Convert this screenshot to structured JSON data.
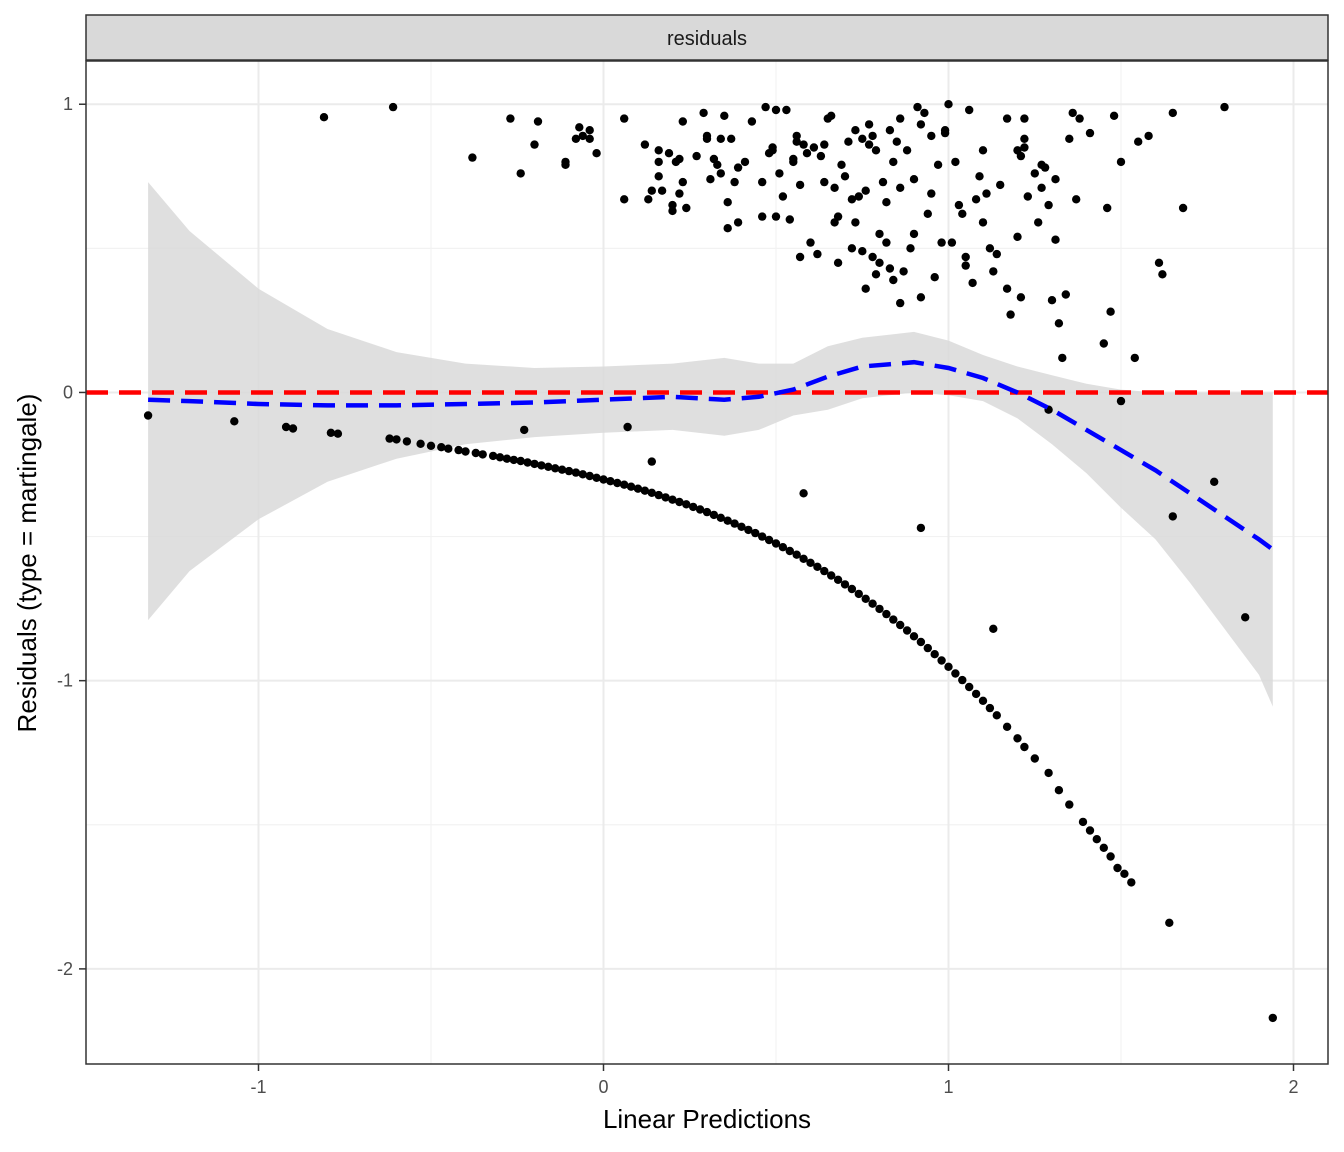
{
  "chart_data": {
    "type": "scatter",
    "facet_strip": "residuals",
    "xlabel": "Linear Predictions",
    "ylabel": "Residuals (type = martingale)",
    "xlim": [
      -1.5,
      2.1
    ],
    "ylim": [
      -2.33,
      1.15
    ],
    "x_ticks": [
      -1,
      0,
      1,
      2
    ],
    "y_ticks": [
      -2,
      -1,
      0,
      1
    ],
    "grid": true,
    "reference_line": {
      "y": 0,
      "color": "#ff0000",
      "style": "dashed"
    },
    "colors": {
      "points": "#000000",
      "smooth": "#0000ff",
      "band": "#d9d9d9",
      "reference": "#ff0000",
      "strip": "#d9d9d9"
    },
    "upper_points": [
      [
        -0.81,
        0.955
      ],
      [
        -0.61,
        0.99
      ],
      [
        -0.38,
        0.815
      ],
      [
        -0.27,
        0.95
      ],
      [
        -0.24,
        0.76
      ],
      [
        -0.2,
        0.86
      ],
      [
        -0.19,
        0.94
      ],
      [
        -0.11,
        0.8
      ],
      [
        -0.11,
        0.79
      ],
      [
        -0.08,
        0.88
      ],
      [
        -0.07,
        0.92
      ],
      [
        -0.06,
        0.89
      ],
      [
        -0.04,
        0.91
      ],
      [
        -0.04,
        0.88
      ],
      [
        -0.02,
        0.83
      ],
      [
        0.06,
        0.95
      ],
      [
        0.06,
        0.67
      ],
      [
        0.12,
        0.86
      ],
      [
        0.13,
        0.67
      ],
      [
        0.14,
        0.7
      ],
      [
        0.16,
        0.8
      ],
      [
        0.16,
        0.75
      ],
      [
        0.16,
        0.84
      ],
      [
        0.17,
        0.7
      ],
      [
        0.19,
        0.83
      ],
      [
        0.2,
        0.65
      ],
      [
        0.2,
        0.63
      ],
      [
        0.21,
        0.8
      ],
      [
        0.22,
        0.69
      ],
      [
        0.22,
        0.81
      ],
      [
        0.23,
        0.94
      ],
      [
        0.23,
        0.73
      ],
      [
        0.24,
        0.64
      ],
      [
        0.29,
        0.97
      ],
      [
        0.3,
        0.88
      ],
      [
        0.3,
        0.89
      ],
      [
        0.31,
        0.74
      ],
      [
        0.32,
        0.81
      ],
      [
        0.33,
        0.79
      ],
      [
        0.34,
        0.76
      ],
      [
        0.34,
        0.88
      ],
      [
        0.35,
        0.96
      ],
      [
        0.36,
        0.57
      ],
      [
        0.36,
        0.66
      ],
      [
        0.37,
        0.88
      ],
      [
        0.38,
        0.73
      ],
      [
        0.39,
        0.59
      ],
      [
        0.39,
        0.78
      ],
      [
        0.41,
        0.8
      ],
      [
        0.43,
        0.94
      ],
      [
        0.46,
        0.61
      ],
      [
        0.47,
        0.99
      ],
      [
        0.48,
        0.83
      ],
      [
        0.49,
        0.85
      ],
      [
        0.49,
        0.84
      ],
      [
        0.5,
        0.98
      ],
      [
        0.5,
        0.61
      ],
      [
        0.51,
        0.76
      ],
      [
        0.52,
        0.68
      ],
      [
        0.53,
        0.98
      ],
      [
        0.54,
        0.6
      ],
      [
        0.55,
        0.81
      ],
      [
        0.56,
        0.89
      ],
      [
        0.56,
        0.87
      ],
      [
        0.57,
        0.47
      ],
      [
        0.58,
        0.86
      ],
      [
        0.59,
        0.83
      ],
      [
        0.6,
        0.52
      ],
      [
        0.61,
        0.85
      ],
      [
        0.62,
        0.48
      ],
      [
        0.63,
        0.82
      ],
      [
        0.64,
        0.73
      ],
      [
        0.64,
        0.86
      ],
      [
        0.65,
        0.95
      ],
      [
        0.66,
        0.96
      ],
      [
        0.67,
        0.59
      ],
      [
        0.67,
        0.71
      ],
      [
        0.68,
        0.45
      ],
      [
        0.68,
        0.61
      ],
      [
        0.69,
        0.79
      ],
      [
        0.71,
        0.87
      ],
      [
        0.72,
        0.67
      ],
      [
        0.72,
        0.5
      ],
      [
        0.73,
        0.91
      ],
      [
        0.73,
        0.59
      ],
      [
        0.74,
        0.68
      ],
      [
        0.75,
        0.88
      ],
      [
        0.75,
        0.49
      ],
      [
        0.76,
        0.36
      ],
      [
        0.76,
        0.7
      ],
      [
        0.77,
        0.93
      ],
      [
        0.77,
        0.86
      ],
      [
        0.78,
        0.47
      ],
      [
        0.78,
        0.89
      ],
      [
        0.79,
        0.41
      ],
      [
        0.8,
        0.55
      ],
      [
        0.8,
        0.45
      ],
      [
        0.81,
        0.73
      ],
      [
        0.82,
        0.52
      ],
      [
        0.82,
        0.66
      ],
      [
        0.83,
        0.43
      ],
      [
        0.83,
        0.91
      ],
      [
        0.84,
        0.39
      ],
      [
        0.84,
        0.8
      ],
      [
        0.85,
        0.87
      ],
      [
        0.86,
        0.31
      ],
      [
        0.86,
        0.71
      ],
      [
        0.87,
        0.42
      ],
      [
        0.88,
        0.84
      ],
      [
        0.89,
        0.5
      ],
      [
        0.9,
        0.55
      ],
      [
        0.9,
        0.74
      ],
      [
        0.91,
        0.99
      ],
      [
        0.92,
        0.93
      ],
      [
        0.92,
        0.33
      ],
      [
        0.93,
        0.97
      ],
      [
        0.94,
        0.62
      ],
      [
        0.95,
        0.69
      ],
      [
        0.96,
        0.4
      ],
      [
        0.97,
        0.79
      ],
      [
        0.98,
        0.52
      ],
      [
        0.99,
        0.9
      ],
      [
        0.99,
        0.91
      ],
      [
        1.0,
        1.0
      ],
      [
        1.01,
        0.52
      ],
      [
        1.02,
        0.8
      ],
      [
        1.03,
        0.65
      ],
      [
        1.04,
        0.62
      ],
      [
        1.05,
        0.47
      ],
      [
        1.05,
        0.44
      ],
      [
        1.06,
        0.98
      ],
      [
        1.07,
        0.38
      ],
      [
        1.08,
        0.67
      ],
      [
        1.1,
        0.84
      ],
      [
        1.1,
        0.59
      ],
      [
        1.11,
        0.69
      ],
      [
        1.12,
        0.5
      ],
      [
        1.13,
        0.42
      ],
      [
        1.14,
        0.48
      ],
      [
        1.17,
        0.95
      ],
      [
        1.17,
        0.36
      ],
      [
        1.18,
        0.27
      ],
      [
        1.2,
        0.54
      ],
      [
        1.2,
        0.84
      ],
      [
        1.21,
        0.33
      ],
      [
        1.21,
        0.82
      ],
      [
        1.22,
        0.85
      ],
      [
        1.22,
        0.88
      ],
      [
        1.22,
        0.95
      ],
      [
        1.23,
        0.68
      ],
      [
        1.25,
        0.76
      ],
      [
        1.26,
        0.59
      ],
      [
        1.27,
        0.79
      ],
      [
        1.27,
        0.71
      ],
      [
        1.28,
        0.78
      ],
      [
        1.29,
        0.65
      ],
      [
        1.3,
        0.32
      ],
      [
        1.31,
        0.74
      ],
      [
        1.31,
        0.53
      ],
      [
        1.32,
        0.24
      ],
      [
        1.33,
        0.12
      ],
      [
        1.34,
        0.34
      ],
      [
        1.35,
        0.88
      ],
      [
        1.36,
        0.97
      ],
      [
        1.37,
        0.67
      ],
      [
        1.38,
        0.95
      ],
      [
        1.41,
        0.9
      ],
      [
        1.45,
        0.17
      ],
      [
        1.46,
        0.64
      ],
      [
        1.47,
        0.28
      ],
      [
        1.48,
        0.96
      ],
      [
        1.5,
        0.8
      ],
      [
        1.54,
        0.12
      ],
      [
        1.55,
        0.87
      ],
      [
        1.58,
        0.89
      ],
      [
        1.61,
        0.45
      ],
      [
        1.62,
        0.41
      ],
      [
        1.65,
        0.97
      ],
      [
        1.68,
        0.64
      ],
      [
        1.8,
        0.99
      ],
      [
        0.55,
        0.8
      ],
      [
        0.7,
        0.75
      ],
      [
        0.46,
        0.73
      ],
      [
        0.27,
        0.82
      ],
      [
        1.15,
        0.72
      ],
      [
        1.09,
        0.75
      ],
      [
        0.95,
        0.89
      ],
      [
        0.57,
        0.72
      ],
      [
        0.79,
        0.84
      ],
      [
        0.86,
        0.95
      ]
    ],
    "curve_points": [
      [
        -0.62,
        -0.16
      ],
      [
        -0.6,
        -0.163
      ],
      [
        -0.57,
        -0.17
      ],
      [
        -0.53,
        -0.178
      ],
      [
        -0.5,
        -0.185
      ],
      [
        -0.47,
        -0.19
      ],
      [
        -0.45,
        -0.195
      ],
      [
        -0.42,
        -0.2
      ],
      [
        -0.4,
        -0.205
      ],
      [
        -0.37,
        -0.21
      ],
      [
        -0.35,
        -0.215
      ],
      [
        -0.32,
        -0.22
      ],
      [
        -0.3,
        -0.225
      ],
      [
        -0.28,
        -0.23
      ],
      [
        -0.26,
        -0.234
      ],
      [
        -0.24,
        -0.238
      ],
      [
        -0.22,
        -0.243
      ],
      [
        -0.2,
        -0.248
      ],
      [
        -0.18,
        -0.253
      ],
      [
        -0.16,
        -0.258
      ],
      [
        -0.14,
        -0.263
      ],
      [
        -0.12,
        -0.268
      ],
      [
        -0.1,
        -0.273
      ],
      [
        -0.08,
        -0.278
      ],
      [
        -0.06,
        -0.284
      ],
      [
        -0.04,
        -0.29
      ],
      [
        -0.02,
        -0.296
      ],
      [
        0.0,
        -0.302
      ],
      [
        0.02,
        -0.308
      ],
      [
        0.04,
        -0.314
      ],
      [
        0.06,
        -0.32
      ],
      [
        0.08,
        -0.327
      ],
      [
        0.1,
        -0.334
      ],
      [
        0.12,
        -0.341
      ],
      [
        0.14,
        -0.348
      ],
      [
        0.16,
        -0.356
      ],
      [
        0.18,
        -0.364
      ],
      [
        0.2,
        -0.372
      ],
      [
        0.22,
        -0.38
      ],
      [
        0.24,
        -0.388
      ],
      [
        0.26,
        -0.397
      ],
      [
        0.28,
        -0.406
      ],
      [
        0.3,
        -0.415
      ],
      [
        0.32,
        -0.425
      ],
      [
        0.34,
        -0.435
      ],
      [
        0.36,
        -0.445
      ],
      [
        0.38,
        -0.455
      ],
      [
        0.4,
        -0.466
      ],
      [
        0.42,
        -0.477
      ],
      [
        0.44,
        -0.488
      ],
      [
        0.46,
        -0.5
      ],
      [
        0.48,
        -0.512
      ],
      [
        0.5,
        -0.524
      ],
      [
        0.52,
        -0.537
      ],
      [
        0.54,
        -0.55
      ],
      [
        0.56,
        -0.563
      ],
      [
        0.58,
        -0.577
      ],
      [
        0.6,
        -0.591
      ],
      [
        0.62,
        -0.605
      ],
      [
        0.64,
        -0.62
      ],
      [
        0.66,
        -0.635
      ],
      [
        0.68,
        -0.65
      ],
      [
        0.7,
        -0.666
      ],
      [
        0.72,
        -0.682
      ],
      [
        0.74,
        -0.699
      ],
      [
        0.76,
        -0.716
      ],
      [
        0.78,
        -0.733
      ],
      [
        0.8,
        -0.751
      ],
      [
        0.82,
        -0.769
      ],
      [
        0.84,
        -0.788
      ],
      [
        0.86,
        -0.807
      ],
      [
        0.88,
        -0.826
      ],
      [
        0.9,
        -0.846
      ],
      [
        0.92,
        -0.866
      ],
      [
        0.94,
        -0.887
      ],
      [
        0.96,
        -0.908
      ],
      [
        0.98,
        -0.93
      ],
      [
        1.0,
        -0.952
      ],
      [
        1.02,
        -0.975
      ],
      [
        1.04,
        -0.998
      ],
      [
        1.06,
        -1.022
      ],
      [
        1.08,
        -1.046
      ],
      [
        1.1,
        -1.07
      ],
      [
        1.12,
        -1.095
      ],
      [
        1.14,
        -1.12
      ],
      [
        1.17,
        -1.16
      ],
      [
        1.2,
        -1.2
      ],
      [
        1.22,
        -1.23
      ],
      [
        1.25,
        -1.27
      ],
      [
        1.29,
        -1.32
      ],
      [
        1.32,
        -1.38
      ],
      [
        1.35,
        -1.43
      ],
      [
        1.39,
        -1.49
      ],
      [
        1.41,
        -1.52
      ],
      [
        1.43,
        -1.55
      ],
      [
        1.45,
        -1.58
      ],
      [
        1.47,
        -1.61
      ],
      [
        1.49,
        -1.65
      ],
      [
        1.51,
        -1.67
      ],
      [
        1.53,
        -1.7
      ],
      [
        1.64,
        -1.84
      ],
      [
        1.94,
        -2.17
      ]
    ],
    "other_points": [
      [
        -1.32,
        -0.08
      ],
      [
        -1.07,
        -0.1
      ],
      [
        -0.92,
        -0.12
      ],
      [
        -0.9,
        -0.125
      ],
      [
        -0.79,
        -0.14
      ],
      [
        -0.77,
        -0.143
      ],
      [
        -0.23,
        -0.13
      ],
      [
        0.07,
        -0.12
      ],
      [
        0.14,
        -0.24
      ],
      [
        0.58,
        -0.35
      ],
      [
        0.92,
        -0.47
      ],
      [
        1.13,
        -0.82
      ],
      [
        1.29,
        -0.06
      ],
      [
        1.5,
        -0.03
      ],
      [
        1.65,
        -0.43
      ],
      [
        1.77,
        -0.31
      ],
      [
        1.86,
        -0.78
      ]
    ],
    "smooth_line": [
      [
        -1.32,
        -0.025
      ],
      [
        -1.2,
        -0.03
      ],
      [
        -1.0,
        -0.04
      ],
      [
        -0.8,
        -0.045
      ],
      [
        -0.6,
        -0.045
      ],
      [
        -0.4,
        -0.04
      ],
      [
        -0.2,
        -0.035
      ],
      [
        0.0,
        -0.025
      ],
      [
        0.2,
        -0.015
      ],
      [
        0.35,
        -0.025
      ],
      [
        0.45,
        -0.015
      ],
      [
        0.55,
        0.01
      ],
      [
        0.65,
        0.055
      ],
      [
        0.75,
        0.09
      ],
      [
        0.9,
        0.105
      ],
      [
        1.0,
        0.085
      ],
      [
        1.1,
        0.05
      ],
      [
        1.2,
        0.0
      ],
      [
        1.3,
        -0.06
      ],
      [
        1.4,
        -0.13
      ],
      [
        1.5,
        -0.2
      ],
      [
        1.6,
        -0.27
      ],
      [
        1.7,
        -0.35
      ],
      [
        1.8,
        -0.43
      ],
      [
        1.9,
        -0.51
      ],
      [
        1.94,
        -0.545
      ]
    ],
    "confidence_band": [
      [
        -1.32,
        0.73,
        -0.79
      ],
      [
        -1.2,
        0.56,
        -0.62
      ],
      [
        -1.0,
        0.36,
        -0.44
      ],
      [
        -0.8,
        0.22,
        -0.31
      ],
      [
        -0.6,
        0.14,
        -0.23
      ],
      [
        -0.4,
        0.1,
        -0.18
      ],
      [
        -0.2,
        0.085,
        -0.155
      ],
      [
        0.0,
        0.09,
        -0.14
      ],
      [
        0.2,
        0.1,
        -0.13
      ],
      [
        0.35,
        0.12,
        -0.15
      ],
      [
        0.45,
        0.1,
        -0.13
      ],
      [
        0.55,
        0.1,
        -0.08
      ],
      [
        0.65,
        0.16,
        -0.06
      ],
      [
        0.75,
        0.19,
        -0.02
      ],
      [
        0.9,
        0.21,
        0.0
      ],
      [
        1.0,
        0.18,
        -0.01
      ],
      [
        1.1,
        0.13,
        -0.03
      ],
      [
        1.2,
        0.09,
        -0.09
      ],
      [
        1.3,
        0.06,
        -0.18
      ],
      [
        1.4,
        0.03,
        -0.28
      ],
      [
        1.5,
        0.01,
        -0.4
      ],
      [
        1.6,
        0.0,
        -0.51
      ],
      [
        1.7,
        0.0,
        -0.66
      ],
      [
        1.8,
        0.0,
        -0.82
      ],
      [
        1.9,
        0.0,
        -0.98
      ],
      [
        1.94,
        0.0,
        -1.09
      ]
    ]
  }
}
